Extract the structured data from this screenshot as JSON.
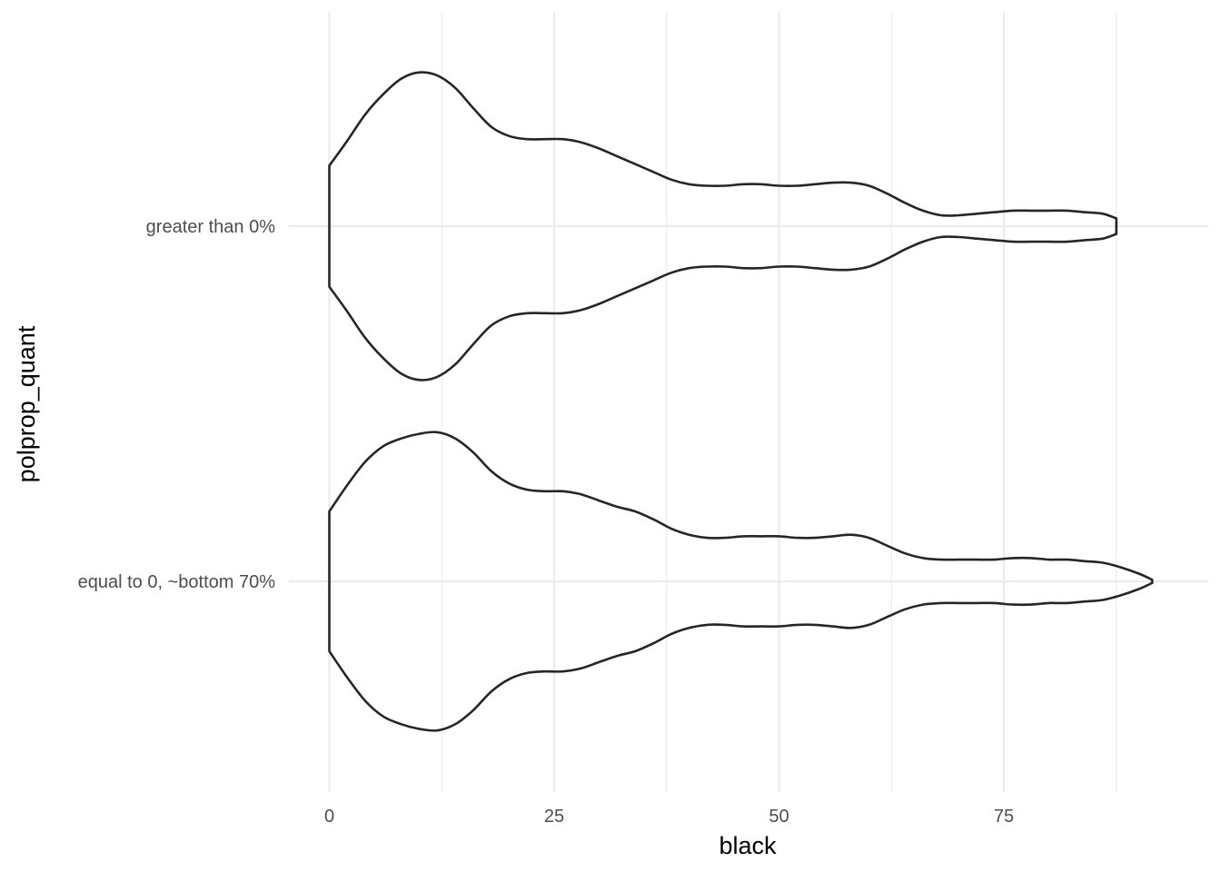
{
  "chart_data": {
    "type": "violin",
    "title": "",
    "xlabel": "black",
    "ylabel": "polprop_quant",
    "xlim": [
      0,
      95
    ],
    "x_ticks": [
      0,
      25,
      50,
      75
    ],
    "x_minor": [
      12.5,
      37.5,
      62.5,
      87.5
    ],
    "grid": true,
    "categories": [
      "equal to 0, ~bottom 70%",
      "greater than 0%"
    ],
    "series": [
      {
        "category": "greater than 0%",
        "outline_color": "#262626",
        "fill_color": "#ffffff",
        "density": [
          [
            0,
            0.39
          ],
          [
            2,
            0.55
          ],
          [
            4,
            0.72
          ],
          [
            6,
            0.85
          ],
          [
            8,
            0.95
          ],
          [
            10,
            0.99
          ],
          [
            12,
            0.97
          ],
          [
            14,
            0.89
          ],
          [
            16,
            0.76
          ],
          [
            18,
            0.64
          ],
          [
            20,
            0.58
          ],
          [
            22,
            0.56
          ],
          [
            24,
            0.56
          ],
          [
            26,
            0.56
          ],
          [
            28,
            0.54
          ],
          [
            30,
            0.5
          ],
          [
            32,
            0.45
          ],
          [
            34,
            0.4
          ],
          [
            36,
            0.35
          ],
          [
            38,
            0.3
          ],
          [
            40,
            0.27
          ],
          [
            42,
            0.26
          ],
          [
            44,
            0.26
          ],
          [
            46,
            0.27
          ],
          [
            48,
            0.27
          ],
          [
            50,
            0.26
          ],
          [
            52,
            0.26
          ],
          [
            54,
            0.27
          ],
          [
            56,
            0.28
          ],
          [
            58,
            0.28
          ],
          [
            60,
            0.26
          ],
          [
            62,
            0.21
          ],
          [
            64,
            0.15
          ],
          [
            66,
            0.1
          ],
          [
            68,
            0.07
          ],
          [
            70,
            0.07
          ],
          [
            72,
            0.08
          ],
          [
            74,
            0.09
          ],
          [
            76,
            0.1
          ],
          [
            78,
            0.1
          ],
          [
            80,
            0.1
          ],
          [
            82,
            0.1
          ],
          [
            84,
            0.09
          ],
          [
            86,
            0.08
          ],
          [
            87.5,
            0.05
          ]
        ]
      },
      {
        "category": "equal to 0, ~bottom 70%",
        "outline_color": "#262626",
        "fill_color": "#ffffff",
        "density": [
          [
            0,
            0.45
          ],
          [
            2,
            0.62
          ],
          [
            4,
            0.77
          ],
          [
            6,
            0.87
          ],
          [
            8,
            0.92
          ],
          [
            10,
            0.95
          ],
          [
            12,
            0.96
          ],
          [
            14,
            0.92
          ],
          [
            16,
            0.83
          ],
          [
            18,
            0.71
          ],
          [
            20,
            0.63
          ],
          [
            22,
            0.59
          ],
          [
            24,
            0.58
          ],
          [
            26,
            0.58
          ],
          [
            28,
            0.56
          ],
          [
            30,
            0.52
          ],
          [
            32,
            0.48
          ],
          [
            34,
            0.45
          ],
          [
            36,
            0.4
          ],
          [
            38,
            0.34
          ],
          [
            40,
            0.3
          ],
          [
            42,
            0.28
          ],
          [
            44,
            0.28
          ],
          [
            46,
            0.29
          ],
          [
            48,
            0.29
          ],
          [
            50,
            0.29
          ],
          [
            52,
            0.28
          ],
          [
            54,
            0.28
          ],
          [
            56,
            0.29
          ],
          [
            58,
            0.3
          ],
          [
            60,
            0.28
          ],
          [
            62,
            0.23
          ],
          [
            64,
            0.18
          ],
          [
            66,
            0.15
          ],
          [
            68,
            0.14
          ],
          [
            70,
            0.14
          ],
          [
            72,
            0.14
          ],
          [
            74,
            0.14
          ],
          [
            76,
            0.15
          ],
          [
            78,
            0.15
          ],
          [
            80,
            0.14
          ],
          [
            82,
            0.14
          ],
          [
            84,
            0.13
          ],
          [
            86,
            0.12
          ],
          [
            88,
            0.09
          ],
          [
            90,
            0.05
          ],
          [
            91.5,
            0.01
          ]
        ]
      }
    ]
  }
}
